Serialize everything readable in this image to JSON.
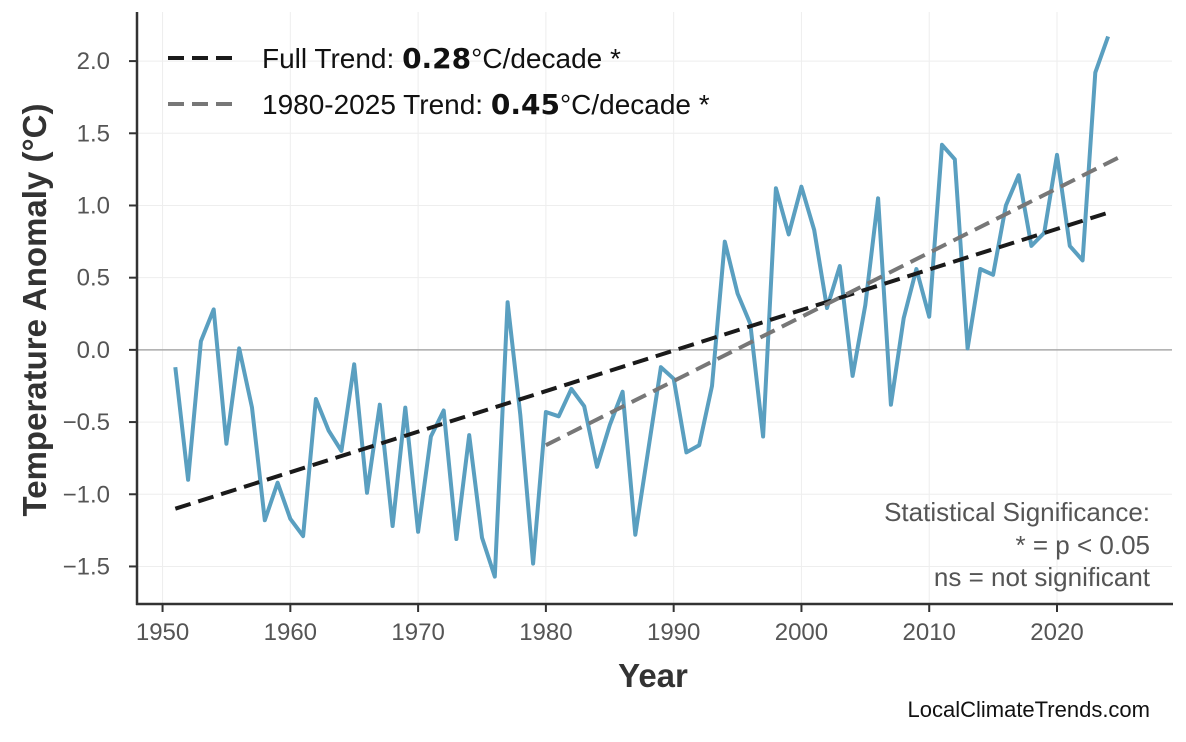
{
  "chart_data": {
    "type": "line",
    "xlabel": "Year",
    "ylabel": "Temperature Anomaly (°C)",
    "xlim": [
      1948,
      2029
    ],
    "ylim": [
      -1.76,
      2.34
    ],
    "xticks": [
      "1950",
      "1960",
      "1970",
      "1980",
      "1990",
      "2000",
      "2010",
      "2020"
    ],
    "yticks": [
      "−1.5",
      "−1.0",
      "−0.5",
      "0.0",
      "0.5",
      "1.0",
      "1.5",
      "2.0"
    ],
    "grid": true,
    "legend_position": "top-left",
    "colors": {
      "series": "#5a9fc0",
      "full_trend": "#1a1a1a",
      "recent_trend": "#777777",
      "zero_line": "#aaaaaa"
    },
    "x": [
      1951,
      1952,
      1953,
      1954,
      1955,
      1956,
      1957,
      1958,
      1959,
      1960,
      1961,
      1962,
      1963,
      1964,
      1965,
      1966,
      1967,
      1968,
      1969,
      1970,
      1971,
      1972,
      1973,
      1974,
      1975,
      1976,
      1977,
      1978,
      1979,
      1980,
      1981,
      1982,
      1983,
      1984,
      1985,
      1986,
      1987,
      1988,
      1989,
      1990,
      1991,
      1992,
      1993,
      1994,
      1995,
      1996,
      1997,
      1998,
      1999,
      2000,
      2001,
      2002,
      2003,
      2004,
      2005,
      2006,
      2007,
      2008,
      2009,
      2010,
      2011,
      2012,
      2013,
      2014,
      2015,
      2016,
      2017,
      2018,
      2019,
      2020,
      2021,
      2022,
      2023,
      2024
    ],
    "y": [
      -0.12,
      -0.9,
      0.06,
      0.28,
      -0.65,
      0.01,
      -0.4,
      -1.18,
      -0.92,
      -1.17,
      -1.29,
      -0.34,
      -0.56,
      -0.7,
      -0.1,
      -0.99,
      -0.38,
      -1.22,
      -0.4,
      -1.26,
      -0.6,
      -0.42,
      -1.31,
      -0.59,
      -1.3,
      -1.57,
      0.33,
      -0.45,
      -1.48,
      -0.43,
      -0.46,
      -0.27,
      -0.39,
      -0.81,
      -0.52,
      -0.29,
      -1.28,
      -0.7,
      -0.12,
      -0.2,
      -0.71,
      -0.66,
      -0.25,
      0.75,
      0.39,
      0.18,
      -0.6,
      1.12,
      0.8,
      1.13,
      0.83,
      0.29,
      0.58,
      -0.18,
      0.31,
      1.05,
      -0.38,
      0.22,
      0.56,
      0.23,
      1.42,
      1.32,
      0.01,
      0.56,
      0.52,
      1.0,
      1.21,
      0.72,
      0.81,
      1.35,
      0.72,
      0.62,
      1.92,
      2.17
    ],
    "trends": [
      {
        "name": "Full Trend",
        "prefix": "Full Trend: ",
        "value": "0.28",
        "suffix": "°C/decade *",
        "x": [
          1951,
          2024
        ],
        "y": [
          -1.1,
          0.95
        ]
      },
      {
        "name": "1980-2025 Trend",
        "prefix": "1980-2025 Trend: ",
        "value": "0.45",
        "suffix": "°C/decade *",
        "x": [
          1980,
          2025
        ],
        "y": [
          -0.66,
          1.34
        ]
      }
    ],
    "annotation": [
      "Statistical Significance:",
      "* = p < 0.05",
      "ns = not significant"
    ]
  },
  "watermark": "LocalClimateTrends.com"
}
